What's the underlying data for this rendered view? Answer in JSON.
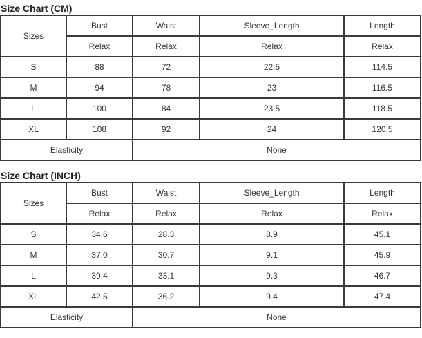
{
  "charts": [
    {
      "title": "Size Chart (CM)",
      "sizes_label": "Sizes",
      "columns": [
        "Bust",
        "Waist",
        "Sleeve_Length",
        "Length"
      ],
      "subheaders": [
        "Relax",
        "Relax",
        "Relax",
        "Relax"
      ],
      "rows": [
        {
          "size": "S",
          "values": [
            "88",
            "72",
            "22.5",
            "114.5"
          ]
        },
        {
          "size": "M",
          "values": [
            "94",
            "78",
            "23",
            "116.5"
          ]
        },
        {
          "size": "L",
          "values": [
            "100",
            "84",
            "23.5",
            "118.5"
          ]
        },
        {
          "size": "XL",
          "values": [
            "108",
            "92",
            "24",
            "120.5"
          ]
        }
      ],
      "elasticity_label": "Elasticity",
      "elasticity_value": "None"
    },
    {
      "title": "Size Chart (INCH)",
      "sizes_label": "Sizes",
      "columns": [
        "Bust",
        "Waist",
        "Sleeve_Length",
        "Length"
      ],
      "subheaders": [
        "Relax",
        "Relax",
        "Relax",
        "Relax"
      ],
      "rows": [
        {
          "size": "S",
          "values": [
            "34.6",
            "28.3",
            "8.9",
            "45.1"
          ]
        },
        {
          "size": "M",
          "values": [
            "37.0",
            "30.7",
            "9.1",
            "45.9"
          ]
        },
        {
          "size": "L",
          "values": [
            "39.4",
            "33.1",
            "9.3",
            "46.7"
          ]
        },
        {
          "size": "XL",
          "values": [
            "42.5",
            "36.2",
            "9.4",
            "47.4"
          ]
        }
      ],
      "elasticity_label": "Elasticity",
      "elasticity_value": "None"
    }
  ]
}
